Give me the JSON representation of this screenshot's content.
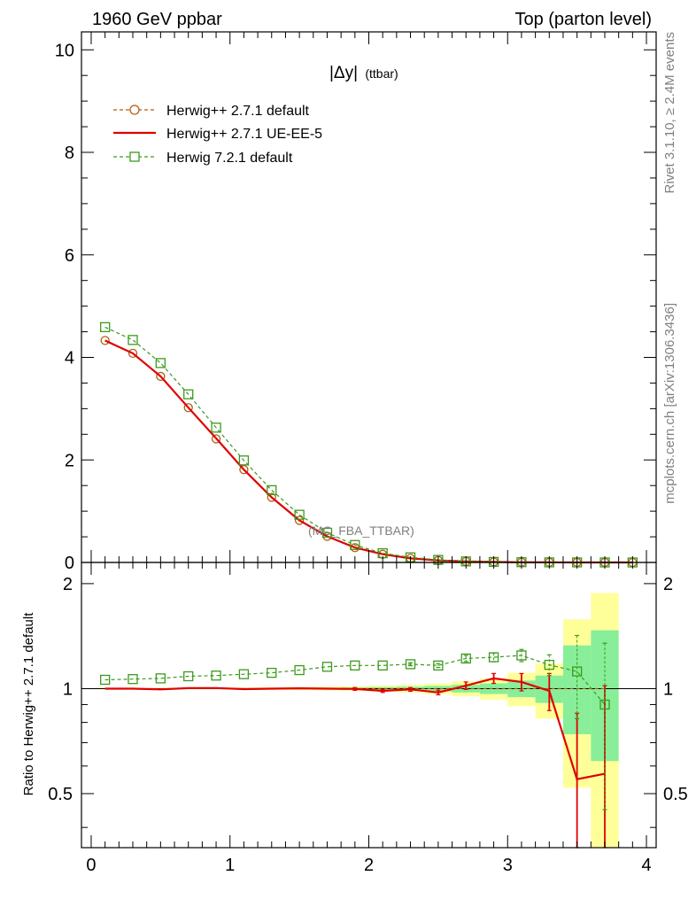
{
  "header": {
    "left": "1960 GeV ppbar",
    "right": "Top (parton level)"
  },
  "side_text": {
    "rivet": "Rivet 3.1.10, ≥ 2.4M events",
    "source": "mcplots.cern.ch [arXiv:1306.3436]"
  },
  "watermark": "(MC_FBA_TTBAR)",
  "colors": {
    "herwigpp_default": "#b25d12",
    "herwigpp_ueee5": "#e00000",
    "herwig7": "#3c9a1c",
    "band_yellow": "#ffff99",
    "band_green": "#88ee99"
  },
  "chart_data": [
    {
      "type": "line",
      "panel": "main",
      "title_main": "|Δy|",
      "title_sub": "(ttbar)",
      "xlim": [
        -0.07,
        4.07
      ],
      "ylim": [
        0,
        10.35
      ],
      "yticks": [
        0,
        2,
        4,
        6,
        8,
        10
      ],
      "ytick_labels": [
        "0",
        "2",
        "4",
        "6",
        "8",
        "10"
      ],
      "x": [
        0.1,
        0.3,
        0.5,
        0.7,
        0.9,
        1.1,
        1.3,
        1.5,
        1.7,
        1.9,
        2.1,
        2.3,
        2.5,
        2.7,
        2.9,
        3.1,
        3.3,
        3.5,
        3.7,
        3.9
      ],
      "series": [
        {
          "name": "Herwig++ 2.7.1 default",
          "style": "dashed-circle",
          "values": [
            4.33,
            4.08,
            3.63,
            3.02,
            2.41,
            1.81,
            1.27,
            0.82,
            0.51,
            0.29,
            0.16,
            0.08,
            0.04,
            0.02,
            0.01,
            0.004,
            0.002,
            0.001,
            0.0005,
            0.0001
          ]
        },
        {
          "name": "Herwig++ 2.7.1 UE-EE-5",
          "style": "solid",
          "values": [
            4.33,
            4.08,
            3.63,
            3.02,
            2.42,
            1.81,
            1.27,
            0.82,
            0.51,
            0.29,
            0.16,
            0.08,
            0.04,
            0.02,
            0.011,
            0.004,
            0.002,
            0.0006,
            0.0003,
            0.0001
          ]
        },
        {
          "name": "Herwig 7.2.1 default",
          "style": "dashed-square",
          "values": [
            4.59,
            4.34,
            3.89,
            3.28,
            2.63,
            1.99,
            1.41,
            0.93,
            0.58,
            0.34,
            0.18,
            0.1,
            0.05,
            0.02,
            0.01,
            0.005,
            0.002,
            0.001,
            0.0005,
            0.0001
          ]
        }
      ]
    },
    {
      "type": "line",
      "panel": "ratio",
      "ylabel": "Ratio to Herwig++ 2.7.1 default",
      "xlim": [
        -0.07,
        4.07
      ],
      "ylim": [
        0.35,
        2.3
      ],
      "yticks": [
        0.5,
        1,
        2
      ],
      "ytick_labels": [
        "0.5",
        "1",
        "2"
      ],
      "xticks": [
        0,
        1,
        2,
        3,
        4
      ],
      "xtick_labels": [
        "0",
        "1",
        "2",
        "3",
        "4"
      ],
      "x": [
        0.1,
        0.3,
        0.5,
        0.7,
        0.9,
        1.1,
        1.3,
        1.5,
        1.7,
        1.9,
        2.1,
        2.3,
        2.5,
        2.7,
        2.9,
        3.1,
        3.3,
        3.5,
        3.7
      ],
      "band_edges": [
        0,
        0.2,
        0.4,
        0.6,
        0.8,
        1.0,
        1.2,
        1.4,
        1.6,
        1.8,
        2.0,
        2.2,
        2.4,
        2.6,
        2.8,
        3.0,
        3.2,
        3.4,
        3.6,
        3.8
      ],
      "band_yellow": [
        [
          0.995,
          1.005
        ],
        [
          0.995,
          1.005
        ],
        [
          0.995,
          1.005
        ],
        [
          0.995,
          1.005
        ],
        [
          0.995,
          1.005
        ],
        [
          0.993,
          1.007
        ],
        [
          0.992,
          1.008
        ],
        [
          0.99,
          1.01
        ],
        [
          0.988,
          1.012
        ],
        [
          0.985,
          1.015
        ],
        [
          0.98,
          1.02
        ],
        [
          0.975,
          1.025
        ],
        [
          0.965,
          1.035
        ],
        [
          0.95,
          1.05
        ],
        [
          0.93,
          1.07
        ],
        [
          0.89,
          1.11
        ],
        [
          0.82,
          1.18
        ],
        [
          0.52,
          1.58
        ],
        [
          0.35,
          1.88
        ]
      ],
      "band_green": [
        [
          0.998,
          1.002
        ],
        [
          0.998,
          1.002
        ],
        [
          0.998,
          1.002
        ],
        [
          0.998,
          1.002
        ],
        [
          0.998,
          1.002
        ],
        [
          0.997,
          1.003
        ],
        [
          0.996,
          1.004
        ],
        [
          0.995,
          1.005
        ],
        [
          0.994,
          1.006
        ],
        [
          0.992,
          1.008
        ],
        [
          0.99,
          1.01
        ],
        [
          0.987,
          1.013
        ],
        [
          0.982,
          1.018
        ],
        [
          0.975,
          1.025
        ],
        [
          0.965,
          1.035
        ],
        [
          0.945,
          1.055
        ],
        [
          0.91,
          1.09
        ],
        [
          0.74,
          1.33
        ],
        [
          0.62,
          1.47
        ]
      ],
      "series": [
        {
          "name": "Herwig++ 2.7.1 UE-EE-5",
          "style": "solid",
          "values": [
            1.0,
            1.0,
            0.995,
            1.003,
            1.004,
            0.997,
            1.0,
            1.002,
            1.0,
            0.998,
            0.985,
            0.995,
            0.975,
            1.02,
            1.07,
            1.045,
            0.985,
            0.55,
            0.57
          ],
          "errors": [
            0.003,
            0.003,
            0.003,
            0.004,
            0.004,
            0.005,
            0.006,
            0.006,
            0.007,
            0.009,
            0.01,
            0.012,
            0.015,
            0.025,
            0.035,
            0.06,
            0.12,
            0.3,
            0.45
          ]
        },
        {
          "name": "Herwig 7.2.1 default",
          "style": "dashed-square",
          "values": [
            1.06,
            1.065,
            1.07,
            1.085,
            1.09,
            1.1,
            1.11,
            1.13,
            1.155,
            1.165,
            1.165,
            1.175,
            1.165,
            1.22,
            1.23,
            1.245,
            1.17,
            1.12,
            0.9
          ],
          "errors": [
            0.003,
            0.003,
            0.003,
            0.004,
            0.004,
            0.005,
            0.006,
            0.006,
            0.007,
            0.009,
            0.01,
            0.012,
            0.015,
            0.025,
            0.035,
            0.05,
            0.08,
            0.3,
            0.45
          ]
        }
      ]
    }
  ]
}
